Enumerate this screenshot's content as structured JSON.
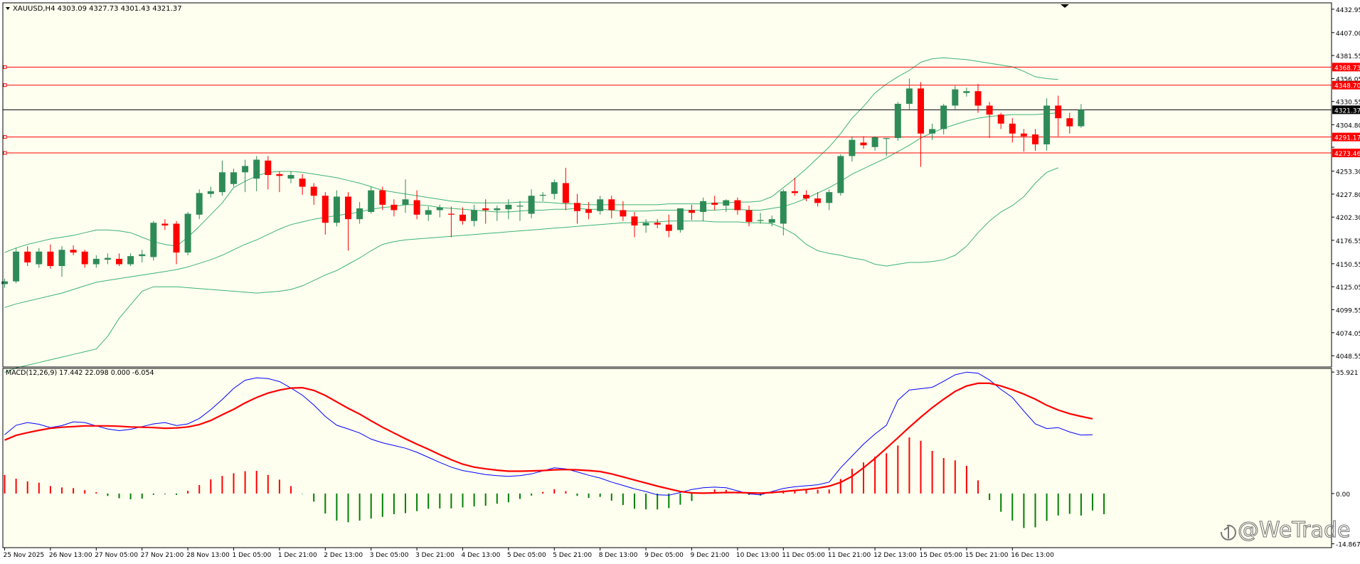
{
  "chart_data": {
    "type": "candlestick",
    "symbol_header": "XAUUSD,H4  4303.09 4327.73 4301.43 4321.37",
    "watermark": "@WeTrade",
    "colors": {
      "background": "#fffff0",
      "bull": "#2e8b57",
      "bear": "#ff0000",
      "bands": "#3cb371",
      "level_lines": "#ff0000",
      "current_price_line": "#000000",
      "macd_line": "#0000ff",
      "signal_line": "#ff0000",
      "hist_positive": "#ff0000",
      "hist_negative": "#008000",
      "axis_text": "#000000"
    },
    "price_axis": {
      "range": [
        4036,
        4440
      ],
      "ticks": [
        "4432.95",
        "4407.00",
        "4381.55",
        "4356.05",
        "4330.55",
        "4304.80",
        "4279.80",
        "4253.30",
        "4227.80",
        "4202.30",
        "4176.55",
        "4150.55",
        "4125.05",
        "4099.55",
        "4074.05",
        "4048.55"
      ]
    },
    "level_lines": [
      {
        "label": "4368.73",
        "value": 4368.73
      },
      {
        "label": "4348.70",
        "value": 4348.7
      },
      {
        "label": "4291.17",
        "value": 4291.17
      },
      {
        "label": "4273.46",
        "value": 4273.46
      }
    ],
    "current_price": {
      "label": "4321.37",
      "value": 4321.37
    },
    "time_axis": [
      {
        "label": "25 Nov 2025",
        "index": 0
      },
      {
        "label": "26 Nov 13:00",
        "index": 4
      },
      {
        "label": "27 Nov 05:00",
        "index": 8
      },
      {
        "label": "27 Nov 21:00",
        "index": 12
      },
      {
        "label": "28 Nov 13:00",
        "index": 16
      },
      {
        "label": "1 Dec 05:00",
        "index": 20
      },
      {
        "label": "1 Dec 21:00",
        "index": 24
      },
      {
        "label": "2 Dec 13:00",
        "index": 28
      },
      {
        "label": "3 Dec 05:00",
        "index": 32
      },
      {
        "label": "3 Dec 21:00",
        "index": 36
      },
      {
        "label": "4 Dec 13:00",
        "index": 40
      },
      {
        "label": "5 Dec 05:00",
        "index": 44
      },
      {
        "label": "5 Dec 21:00",
        "index": 48
      },
      {
        "label": "8 Dec 13:00",
        "index": 52
      },
      {
        "label": "9 Dec 05:00",
        "index": 56
      },
      {
        "label": "9 Dec 21:00",
        "index": 60
      },
      {
        "label": "10 Dec 13:00",
        "index": 64
      },
      {
        "label": "11 Dec 05:00",
        "index": 68
      },
      {
        "label": "11 Dec 21:00",
        "index": 72
      },
      {
        "label": "12 Dec 13:00",
        "index": 76
      },
      {
        "label": "15 Dec 05:00",
        "index": 80
      },
      {
        "label": "15 Dec 21:00",
        "index": 84
      },
      {
        "label": "16 Dec 13:00",
        "index": 88
      }
    ],
    "candles": [
      [
        4128,
        4134,
        4124,
        4131
      ],
      [
        4131,
        4168,
        4129,
        4164
      ],
      [
        4164,
        4170,
        4148,
        4152
      ],
      [
        4150,
        4168,
        4146,
        4164
      ],
      [
        4164,
        4172,
        4145,
        4148
      ],
      [
        4148,
        4170,
        4136,
        4166
      ],
      [
        4166,
        4171,
        4160,
        4163
      ],
      [
        4164,
        4166,
        4146,
        4150
      ],
      [
        4150,
        4160,
        4146,
        4156
      ],
      [
        4155,
        4162,
        4150,
        4157
      ],
      [
        4156,
        4162,
        4148,
        4150
      ],
      [
        4150,
        4162,
        4148,
        4159
      ],
      [
        4159,
        4166,
        4152,
        4161
      ],
      [
        4158,
        4198,
        4154,
        4196
      ],
      [
        4195,
        4200,
        4188,
        4193
      ],
      [
        4195,
        4198,
        4150,
        4163
      ],
      [
        4163,
        4208,
        4160,
        4206
      ],
      [
        4205,
        4233,
        4200,
        4229
      ],
      [
        4228,
        4236,
        4224,
        4231
      ],
      [
        4230,
        4265,
        4226,
        4252
      ],
      [
        4239,
        4256,
        4236,
        4252
      ],
      [
        4252,
        4266,
        4230,
        4259
      ],
      [
        4245,
        4270,
        4231,
        4266
      ],
      [
        4265,
        4270,
        4233,
        4249
      ],
      [
        4250,
        4253,
        4230,
        4248
      ],
      [
        4245,
        4253,
        4240,
        4249
      ],
      [
        4245,
        4250,
        4227,
        4236
      ],
      [
        4236,
        4240,
        4216,
        4226
      ],
      [
        4226,
        4230,
        4183,
        4196
      ],
      [
        4196,
        4232,
        4192,
        4225
      ],
      [
        4225,
        4230,
        4165,
        4200
      ],
      [
        4200,
        4219,
        4195,
        4212
      ],
      [
        4208,
        4236,
        4206,
        4232
      ],
      [
        4232,
        4236,
        4210,
        4216
      ],
      [
        4216,
        4222,
        4203,
        4210
      ],
      [
        4216,
        4244,
        4207,
        4222
      ],
      [
        4221,
        4232,
        4200,
        4205
      ],
      [
        4205,
        4214,
        4198,
        4210
      ],
      [
        4210,
        4216,
        4202,
        4213
      ],
      [
        4206,
        4214,
        4180,
        4205
      ],
      [
        4205,
        4213,
        4194,
        4198
      ],
      [
        4198,
        4216,
        4192,
        4210
      ],
      [
        4212,
        4222,
        4195,
        4210
      ],
      [
        4210,
        4215,
        4198,
        4212
      ],
      [
        4211,
        4222,
        4200,
        4216
      ],
      [
        4214,
        4220,
        4198,
        4215
      ],
      [
        4206,
        4233,
        4201,
        4226
      ],
      [
        4226,
        4230,
        4220,
        4227
      ],
      [
        4228,
        4244,
        4222,
        4241
      ],
      [
        4240,
        4257,
        4210,
        4218
      ],
      [
        4218,
        4228,
        4195,
        4209
      ],
      [
        4211,
        4219,
        4200,
        4207
      ],
      [
        4209,
        4226,
        4205,
        4222
      ],
      [
        4222,
        4226,
        4201,
        4210
      ],
      [
        4210,
        4220,
        4198,
        4203
      ],
      [
        4203,
        4208,
        4180,
        4193
      ],
      [
        4193,
        4200,
        4185,
        4196
      ],
      [
        4196,
        4200,
        4190,
        4194
      ],
      [
        4194,
        4205,
        4180,
        4187
      ],
      [
        4188,
        4212,
        4185,
        4212
      ],
      [
        4210,
        4216,
        4199,
        4207
      ],
      [
        4208,
        4224,
        4198,
        4220
      ],
      [
        4218,
        4226,
        4210,
        4216
      ],
      [
        4215,
        4222,
        4208,
        4221
      ],
      [
        4221,
        4224,
        4205,
        4210
      ],
      [
        4210,
        4215,
        4192,
        4197
      ],
      [
        4198,
        4207,
        4195,
        4199
      ],
      [
        4196,
        4204,
        4192,
        4200
      ],
      [
        4195,
        4233,
        4182,
        4231
      ],
      [
        4231,
        4246,
        4226,
        4229
      ],
      [
        4227,
        4232,
        4220,
        4223
      ],
      [
        4223,
        4230,
        4214,
        4218
      ],
      [
        4218,
        4233,
        4210,
        4230
      ],
      [
        4229,
        4272,
        4226,
        4270
      ],
      [
        4270,
        4292,
        4264,
        4288
      ],
      [
        4285,
        4292,
        4278,
        4282
      ],
      [
        4280,
        4292,
        4276,
        4291
      ],
      [
        4289,
        4290,
        4270,
        4290
      ],
      [
        4290,
        4330,
        4287,
        4328
      ],
      [
        4328,
        4356,
        4322,
        4345
      ],
      [
        4345,
        4352,
        4258,
        4295
      ],
      [
        4295,
        4306,
        4288,
        4300
      ],
      [
        4300,
        4328,
        4294,
        4326
      ],
      [
        4326,
        4348,
        4322,
        4344
      ],
      [
        4340,
        4346,
        4336,
        4342
      ],
      [
        4342,
        4350,
        4318,
        4326
      ],
      [
        4326,
        4330,
        4290,
        4316
      ],
      [
        4316,
        4318,
        4300,
        4306
      ],
      [
        4306,
        4312,
        4285,
        4295
      ],
      [
        4295,
        4300,
        4275,
        4292
      ],
      [
        4294,
        4300,
        4276,
        4283
      ],
      [
        4283,
        4334,
        4276,
        4326
      ],
      [
        4326,
        4337,
        4292,
        4312
      ],
      [
        4312,
        4318,
        4295,
        4303
      ],
      [
        4303.09,
        4327.73,
        4301.43,
        4321.37
      ]
    ],
    "bollinger": {
      "upper": [
        4163,
        4168,
        4172,
        4175,
        4178,
        4180,
        4182,
        4185,
        4188,
        4188,
        4187,
        4185,
        4180,
        4175,
        4172,
        4170,
        4180,
        4192,
        4205,
        4218,
        4235,
        4242,
        4248,
        4252,
        4253,
        4253,
        4252,
        4250,
        4248,
        4246,
        4243,
        4240,
        4236,
        4232,
        4230,
        4228,
        4226,
        4224,
        4222,
        4220,
        4219,
        4218,
        4218,
        4218,
        4218,
        4219,
        4219,
        4219,
        4218,
        4217,
        4217,
        4216,
        4216,
        4216,
        4216,
        4216,
        4216,
        4216,
        4217,
        4217,
        4217,
        4217,
        4218,
        4218,
        4219,
        4219,
        4220,
        4225,
        4235,
        4245,
        4256,
        4268,
        4280,
        4295,
        4312,
        4325,
        4340,
        4350,
        4358,
        4365,
        4374,
        4378,
        4379,
        4378,
        4377,
        4375,
        4373,
        4371,
        4369,
        4364,
        4358,
        4356,
        4355
      ],
      "middle": [
        4102,
        4106,
        4109,
        4112,
        4115,
        4118,
        4122,
        4126,
        4130,
        4132,
        4134,
        4136,
        4138,
        4140,
        4142,
        4144,
        4147,
        4151,
        4155,
        4160,
        4166,
        4172,
        4177,
        4183,
        4189,
        4194,
        4197,
        4200,
        4202,
        4204,
        4206,
        4208,
        4211,
        4213,
        4214,
        4216,
        4216,
        4215,
        4213,
        4212,
        4211,
        4210,
        4209,
        4208,
        4208,
        4209,
        4210,
        4210,
        4211,
        4211,
        4212,
        4211,
        4211,
        4210,
        4209,
        4209,
        4209,
        4210,
        4210,
        4210,
        4210,
        4210,
        4210,
        4211,
        4211,
        4210,
        4210,
        4212,
        4214,
        4218,
        4223,
        4229,
        4235,
        4242,
        4250,
        4256,
        4262,
        4268,
        4275,
        4282,
        4290,
        4296,
        4301,
        4305,
        4309,
        4312,
        4314,
        4315,
        4316,
        4316,
        4316,
        4317,
        4318
      ],
      "lower": [
        4030,
        4035,
        4038,
        4041,
        4044,
        4047,
        4050,
        4053,
        4056,
        4070,
        4090,
        4105,
        4120,
        4125,
        4125,
        4125,
        4124,
        4123,
        4122,
        4121,
        4120,
        4119,
        4118,
        4119,
        4120,
        4122,
        4126,
        4132,
        4138,
        4143,
        4150,
        4157,
        4165,
        4172,
        4175,
        4177,
        4178,
        4179,
        4180,
        4181,
        4182,
        4183,
        4184,
        4185,
        4186,
        4187,
        4188,
        4189,
        4190,
        4191,
        4192,
        4193,
        4194,
        4195,
        4196,
        4196,
        4197,
        4197,
        4198,
        4198,
        4198,
        4198,
        4197,
        4197,
        4197,
        4196,
        4196,
        4195,
        4190,
        4183,
        4172,
        4165,
        4162,
        4160,
        4157,
        4155,
        4150,
        4148,
        4150,
        4152,
        4152,
        4153,
        4155,
        4160,
        4170,
        4185,
        4198,
        4208,
        4215,
        4225,
        4240,
        4252,
        4257
      ]
    },
    "macd": {
      "label": "MACD(12,26,9) 17.442 22.098 0.000 -6.054",
      "range": [
        -16,
        37
      ],
      "ticks": [
        {
          "label": "35.921",
          "value": 35.921
        },
        {
          "label": "0.00",
          "value": 0.0
        },
        {
          "label": "-14.867",
          "value": -14.867
        }
      ],
      "macd_line": [
        17.4,
        20.2,
        21.0,
        20.5,
        19.5,
        20.1,
        21.2,
        21.0,
        20.0,
        19.1,
        18.6,
        19.0,
        19.8,
        20.6,
        21.0,
        20.1,
        20.6,
        22.2,
        24.8,
        27.8,
        31.1,
        33.5,
        34.2,
        34.0,
        33.1,
        31.2,
        29.1,
        26.2,
        22.8,
        20.2,
        19.1,
        17.9,
        16.1,
        15.0,
        14.2,
        13.4,
        12.2,
        10.7,
        9.2,
        7.8,
        6.8,
        6.2,
        5.6,
        5.3,
        5.1,
        5.3,
        5.8,
        6.7,
        7.6,
        7.3,
        6.4,
        5.4,
        4.6,
        3.4,
        2.4,
        1.4,
        0.6,
        -0.4,
        -0.5,
        0.3,
        1.2,
        1.7,
        1.9,
        1.7,
        0.8,
        -0.1,
        -0.4,
        0.6,
        1.5,
        2.0,
        2.3,
        2.6,
        3.4,
        7.6,
        11.1,
        14.6,
        17.6,
        20.2,
        27.6,
        30.6,
        31.0,
        31.4,
        33.2,
        35.1,
        35.9,
        35.6,
        33.6,
        30.8,
        28.4,
        24.4,
        20.6,
        19.2,
        19.5,
        18.2,
        17.3,
        17.4
      ],
      "signal_line": [
        15.8,
        17.2,
        18.0,
        18.7,
        19.3,
        19.6,
        19.8,
        20.0,
        20.0,
        20.0,
        19.9,
        19.7,
        19.6,
        19.5,
        19.3,
        19.4,
        19.7,
        20.4,
        21.6,
        23.3,
        24.9,
        26.8,
        28.4,
        29.7,
        30.6,
        31.2,
        31.3,
        30.5,
        29.0,
        27.1,
        25.2,
        23.5,
        21.5,
        19.6,
        17.9,
        16.2,
        14.6,
        13.1,
        11.5,
        10.0,
        8.7,
        7.8,
        7.3,
        6.9,
        6.6,
        6.6,
        6.7,
        6.8,
        7.0,
        7.1,
        7.0,
        6.8,
        6.5,
        5.8,
        4.9,
        4.0,
        3.1,
        2.2,
        1.4,
        0.6,
        0.2,
        0.1,
        0.2,
        0.3,
        0.3,
        0.2,
        0.1,
        0.3,
        0.6,
        0.9,
        1.2,
        1.6,
        2.2,
        3.3,
        5.1,
        7.6,
        10.4,
        13.4,
        16.5,
        19.6,
        22.6,
        25.4,
        27.9,
        30.2,
        31.8,
        32.6,
        32.6,
        31.8,
        30.7,
        29.4,
        27.9,
        26.1,
        24.7,
        23.6,
        22.8,
        22.1
      ],
      "histogram": [
        5.5,
        4.4,
        3.6,
        3.2,
        2.2,
        1.8,
        1.6,
        1.0,
        0.4,
        -0.7,
        -1.4,
        -1.7,
        -1.5,
        -0.4,
        -0.2,
        -0.4,
        0.8,
        2.5,
        4.2,
        5.2,
        6.0,
        6.6,
        6.7,
        5.5,
        4.1,
        2.2,
        -0.1,
        -2.4,
        -5.9,
        -8.0,
        -8.5,
        -8.0,
        -7.4,
        -6.9,
        -6.1,
        -5.8,
        -5.2,
        -4.5,
        -4.4,
        -4.4,
        -4.1,
        -3.8,
        -3.6,
        -3.0,
        -2.6,
        -1.6,
        -0.6,
        0.5,
        1.3,
        0.7,
        -0.7,
        -1.3,
        -1.0,
        -2.1,
        -3.4,
        -4.5,
        -4.7,
        -4.7,
        -4.3,
        -3.3,
        -2.2,
        0.3,
        1.2,
        1.1,
        0.4,
        -0.4,
        -0.6,
        0.2,
        0.9,
        1.1,
        1.1,
        1.1,
        1.2,
        4.3,
        7.3,
        9.2,
        10.9,
        11.9,
        14.2,
        16.6,
        15.6,
        12.6,
        10.5,
        9.8,
        8.2,
        3.9,
        -1.9,
        -5.4,
        -8.0,
        -10.2,
        -10.0,
        -8.1,
        -6.5,
        -6.0,
        -6.5,
        -5.0,
        -6.1
      ]
    }
  }
}
